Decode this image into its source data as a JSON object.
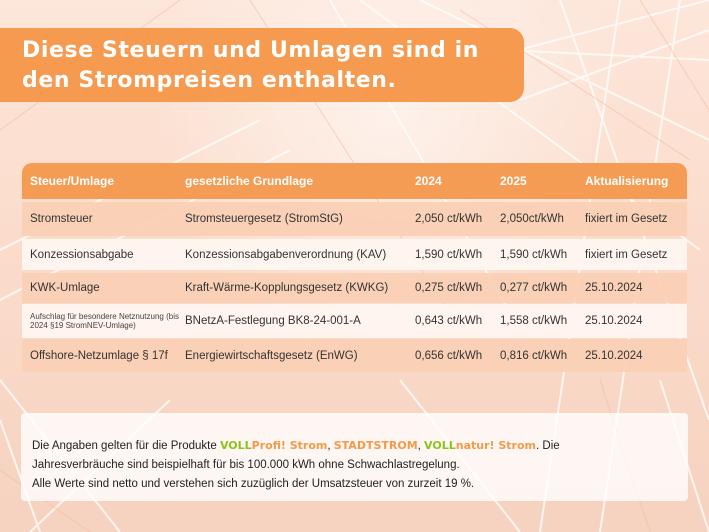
{
  "title": {
    "line1": "Diese Steuern und Umlagen sind in",
    "line2": "den Strompreisen enthalten."
  },
  "colors": {
    "accent_orange": "#f49c53",
    "brand_green": "#8dc21f",
    "background": "#fbe3d6"
  },
  "table": {
    "headers": [
      "Steuer/Umlage",
      "gesetzliche Grundlage",
      "2024",
      "2025",
      "Aktualisierung"
    ],
    "rows": [
      [
        "Stromsteuer",
        "Stromsteuergesetz (StromStG)",
        "2,050 ct/kWh",
        "2,050ct/kWh",
        "fixiert im Gesetz"
      ],
      [
        "Konzessionsabgabe",
        "Konzessionsabgabenverordnung (KAV)",
        "1,590 ct/kWh",
        "1,590 ct/kWh",
        "fixiert im Gesetz"
      ],
      [
        "KWK-Umlage",
        "Kraft-Wärme-Kopplungsgesetz (KWKG)",
        "0,275 ct/kWh",
        "0,277 ct/kWh",
        "25.10.2024"
      ],
      [
        "Aufschlag für besondere Netznutzung (bis 2024 §19 StromNEV-Umlage)",
        "BNetzA-Festlegung BK8-24-001-A",
        "0,643 ct/kWh",
        "1,558 ct/kWh",
        "25.10.2024"
      ],
      [
        "Offshore-Netzumlage § 17f",
        "Energiewirtschaftsgesetz (EnWG)",
        "0,656 ct/kWh",
        "0,816 ct/kWh",
        "25.10.2024"
      ]
    ]
  },
  "footnote": {
    "line1_pre": "Die Angaben gelten für die Produkte ",
    "brand1_part1": "VOLL",
    "brand1_part2": "Profi! Strom",
    "sep1": ", ",
    "brand2": "STADTSTROM",
    "sep2": ", ",
    "brand3_part1": "VOLL",
    "brand3_part2": "natur! Strom",
    "line1_post": ". Die",
    "line2": "Jahresverbräuche sind beispielhaft für bis 100.000 kWh ohne Schwachlastregelung.",
    "line3": "Alle Werte sind netto und verstehen sich zuzüglich der Umsatzsteuer von zurzeit 19 %."
  }
}
